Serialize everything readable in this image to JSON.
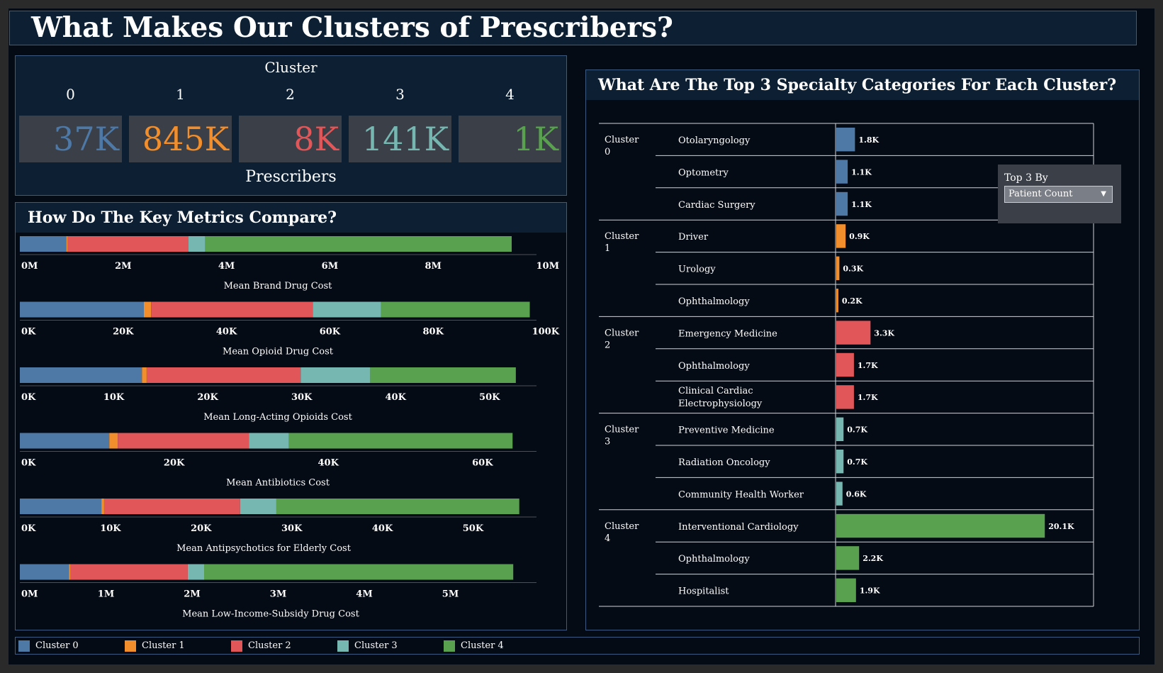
{
  "title": "What Makes Our Clusters of Prescribers?",
  "colors": {
    "cluster_0": "#4e79a7",
    "cluster_1": "#f28e2b",
    "cluster_2": "#e15759",
    "cluster_3": "#76b7b2",
    "cluster_4": "#59a14f"
  },
  "cluster_panel": {
    "caption_top": "Cluster",
    "caption_bottom": "Prescribers",
    "clusters": [
      {
        "id": "0",
        "prescribers": "37K",
        "color": "#4e79a7"
      },
      {
        "id": "1",
        "prescribers": "845K",
        "color": "#f28e2b"
      },
      {
        "id": "2",
        "prescribers": "8K",
        "color": "#e15759"
      },
      {
        "id": "3",
        "prescribers": "141K",
        "color": "#76b7b2"
      },
      {
        "id": "4",
        "prescribers": "1K",
        "color": "#59a14f"
      }
    ]
  },
  "metrics_title": "How Do The Key Metrics Compare?",
  "specialty_title": "What Are The Top 3 Specialty Categories For Each Cluster?",
  "top3_filter": {
    "label": "Top 3 By",
    "selected": "Patient Count"
  },
  "legend": [
    {
      "label": "Cluster 0",
      "color": "#4e79a7"
    },
    {
      "label": "Cluster 1",
      "color": "#f28e2b"
    },
    {
      "label": "Cluster 2",
      "color": "#e15759"
    },
    {
      "label": "Cluster 3",
      "color": "#76b7b2"
    },
    {
      "label": "Cluster 4",
      "color": "#59a14f"
    }
  ],
  "chart_data": [
    {
      "type": "bar",
      "orientation": "horizontal",
      "stacked": true,
      "title": "How Do The Key Metrics Compare?",
      "metrics": [
        {
          "label": "Mean Brand Drug Cost",
          "ticks": [
            "0M",
            "2M",
            "4M",
            "6M",
            "8M",
            "10M"
          ],
          "xlim": [
            0,
            10000000
          ],
          "values": [
            900000,
            30000,
            2330000,
            330000,
            5930000
          ]
        },
        {
          "label": "Mean Opioid Drug Cost",
          "ticks": [
            "0K",
            "20K",
            "40K",
            "60K",
            "80K",
            "100K"
          ],
          "xlim": [
            0,
            100000
          ],
          "values": [
            24000,
            1400,
            31300,
            13200,
            28800
          ]
        },
        {
          "label": "Mean Long-Acting Opioids Cost",
          "ticks": [
            "0K",
            "10K",
            "20K",
            "30K",
            "40K",
            "50K"
          ],
          "xlim": [
            0,
            55000
          ],
          "values": [
            13000,
            500,
            16400,
            7400,
            15500
          ]
        },
        {
          "label": "Mean Antibiotics Cost",
          "ticks": [
            "0K",
            "20K",
            "40K",
            "60K"
          ],
          "xlim": [
            0,
            67000
          ],
          "values": [
            11600,
            1100,
            17000,
            5200,
            29000
          ]
        },
        {
          "label": "Mean Antipsychotics for Elderly Cost",
          "ticks": [
            "0K",
            "10K",
            "20K",
            "30K",
            "40K",
            "50K"
          ],
          "xlim": [
            0,
            57000
          ],
          "values": [
            9000,
            300,
            15000,
            4000,
            26800
          ]
        },
        {
          "label": "Mean Low-Income-Subsidy Drug Cost",
          "ticks": [
            "0M",
            "1M",
            "2M",
            "3M",
            "4M",
            "5M"
          ],
          "xlim": [
            0,
            6000000
          ],
          "values": [
            570000,
            20000,
            1360000,
            190000,
            3590000
          ]
        }
      ],
      "series": [
        {
          "name": "Cluster 0"
        },
        {
          "name": "Cluster 1"
        },
        {
          "name": "Cluster 2"
        },
        {
          "name": "Cluster 3"
        },
        {
          "name": "Cluster 4"
        }
      ]
    },
    {
      "type": "bar",
      "orientation": "horizontal",
      "title": "What Are The Top 3 Specialty Categories For Each Cluster?",
      "xlim": [
        0,
        23500
      ],
      "groups": [
        {
          "cluster": "Cluster 0",
          "color": "#4e79a7",
          "rows": [
            {
              "specialty": "Otolaryngology",
              "value": 1800,
              "label": "1.8K"
            },
            {
              "specialty": "Optometry",
              "value": 1100,
              "label": "1.1K"
            },
            {
              "specialty": "Cardiac Surgery",
              "value": 1100,
              "label": "1.1K"
            }
          ]
        },
        {
          "cluster": "Cluster 1",
          "color": "#f28e2b",
          "rows": [
            {
              "specialty": "Driver",
              "value": 900,
              "label": "0.9K"
            },
            {
              "specialty": "Urology",
              "value": 300,
              "label": "0.3K"
            },
            {
              "specialty": "Ophthalmology",
              "value": 200,
              "label": "0.2K"
            }
          ]
        },
        {
          "cluster": "Cluster 2",
          "color": "#e15759",
          "rows": [
            {
              "specialty": "Emergency Medicine",
              "value": 3300,
              "label": "3.3K"
            },
            {
              "specialty": "Ophthalmology",
              "value": 1700,
              "label": "1.7K"
            },
            {
              "specialty": "Clinical Cardiac Electrophysiology",
              "value": 1700,
              "label": "1.7K"
            }
          ]
        },
        {
          "cluster": "Cluster 3",
          "color": "#76b7b2",
          "rows": [
            {
              "specialty": "Preventive Medicine",
              "value": 700,
              "label": "0.7K"
            },
            {
              "specialty": "Radiation Oncology",
              "value": 700,
              "label": "0.7K"
            },
            {
              "specialty": "Community Health Worker",
              "value": 600,
              "label": "0.6K"
            }
          ]
        },
        {
          "cluster": "Cluster 4",
          "color": "#59a14f",
          "rows": [
            {
              "specialty": "Interventional Cardiology",
              "value": 20100,
              "label": "20.1K"
            },
            {
              "specialty": "Ophthalmology",
              "value": 2200,
              "label": "2.2K"
            },
            {
              "specialty": "Hospitalist",
              "value": 1900,
              "label": "1.9K"
            }
          ]
        }
      ]
    }
  ]
}
